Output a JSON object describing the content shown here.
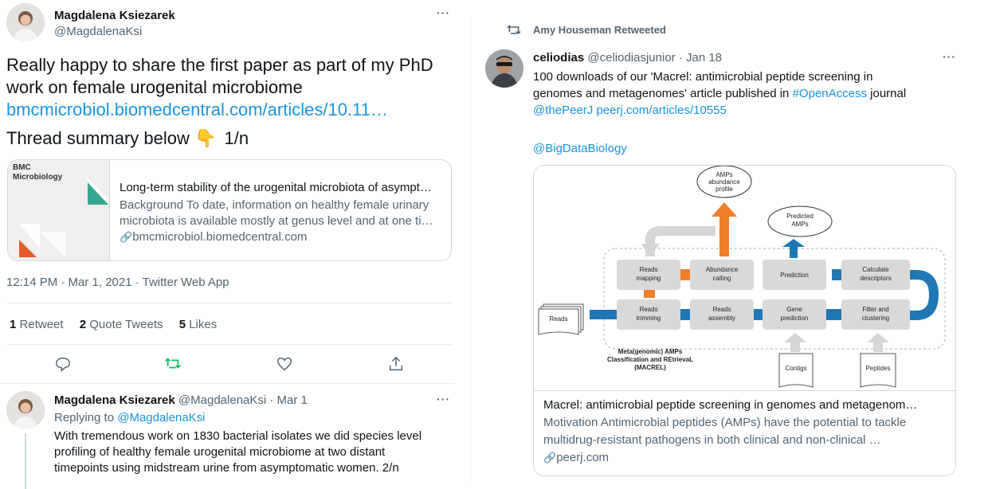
{
  "left_tweet": {
    "author_name": "Magdalena Ksiezarek",
    "author_handle": "@MagdalenaKsi",
    "text_line1": "Really happy to share the first paper as part of my PhD",
    "text_line2": "work on female urogenital microbiome",
    "link": "bmcmicrobiol.biomedcentral.com/articles/10.11…",
    "thread_text": "Thread summary below",
    "thread_emoji": "👇",
    "thread_count": "1/n",
    "card": {
      "brand_line1": "BMC",
      "brand_line2": "Microbiology",
      "title": "Long-term stability of the urogenital microbiota of asympt…",
      "desc_line1": "Background To date, information on healthy female urinary",
      "desc_line2": "microbiota is available mostly at genus level and at one ti…",
      "domain": "bmcmicrobiol.biomedcentral.com"
    },
    "timestamp": "12:14 PM · Mar 1, 2021 · Twitter Web App",
    "stats": {
      "retweets_count": "1",
      "retweets_label": "Retweet",
      "quotes_count": "2",
      "quotes_label": "Quote Tweets",
      "likes_count": "5",
      "likes_label": "Likes"
    },
    "icons": {
      "reply": "reply-icon",
      "retweet": "retweet-icon",
      "like": "like-icon",
      "share": "share-icon",
      "retweet_active_color": "#17bf63"
    }
  },
  "reply_tweet": {
    "author_name": "Magdalena Ksiezarek",
    "author_handle": "@MagdalenaKsi",
    "date": "· Mar 1",
    "replying_prefix": "Replying to",
    "replying_handle": "@MagdalenaKsi",
    "text_line1": "With tremendous work on 1830 bacterial isolates we did species level",
    "text_line2": "profiling of healthy female urogenital microbiome at two distant",
    "text_line3": "timepoints using midstream urine from asymptomatic women. 2/n"
  },
  "right_tweet": {
    "retweeted_by": "Amy Houseman Retweeted",
    "author_name": "celiodias",
    "author_handle": "@celiodiasjunior",
    "date": "· Jan 18",
    "text_line1": "100 downloads of our 'Macrel: antimicrobial peptide screening in",
    "text_line2_a": "genomes and metagenomes' article published in",
    "hashtag": "#OpenAccess",
    "text_line2_b": "journal",
    "mention_peerj": "@thePeerJ",
    "peerj_link": "peerj.com/articles/10555",
    "mention_bigdata": "@BigDataBiology",
    "card": {
      "title": "Macrel: antimicrobial peptide screening in genomes and metagenom…",
      "desc_line1": "Motivation Antimicrobial peptides (AMPs) have the potential to tackle",
      "desc_line2": "multidrug-resistant pathogens in both clinical and non-clinical …",
      "domain": "peerj.com"
    },
    "diagram": {
      "amps_abundance_1": "AMPs",
      "amps_abundance_2": "abundance",
      "amps_abundance_3": "profile",
      "predicted_1": "Predicted",
      "predicted_2": "AMPs",
      "reads_mapping_1": "Reads",
      "reads_mapping_2": "mapping",
      "abundance_calling_1": "Abundance",
      "abundance_calling_2": "calling",
      "prediction": "Prediction",
      "calc_desc_1": "Calculate",
      "calc_desc_2": "descriptors",
      "reads_in": "Reads",
      "reads_trimming_1": "Reads",
      "reads_trimming_2": "trimming",
      "reads_assembly_1": "Reads",
      "reads_assembly_2": "assembly",
      "gene_pred_1": "Gene",
      "gene_pred_2": "prediction",
      "filter_1": "Filter and",
      "filter_2": "clustering",
      "macrel_1": "Meta(genomic) AMPs",
      "macrel_2": "Classification and REtrievaL",
      "macrel_3": "(MACREL)",
      "contigs": "Contigs",
      "peptides": "Peptides",
      "orange": "#f07f2c",
      "blue": "#1f78b4"
    }
  }
}
